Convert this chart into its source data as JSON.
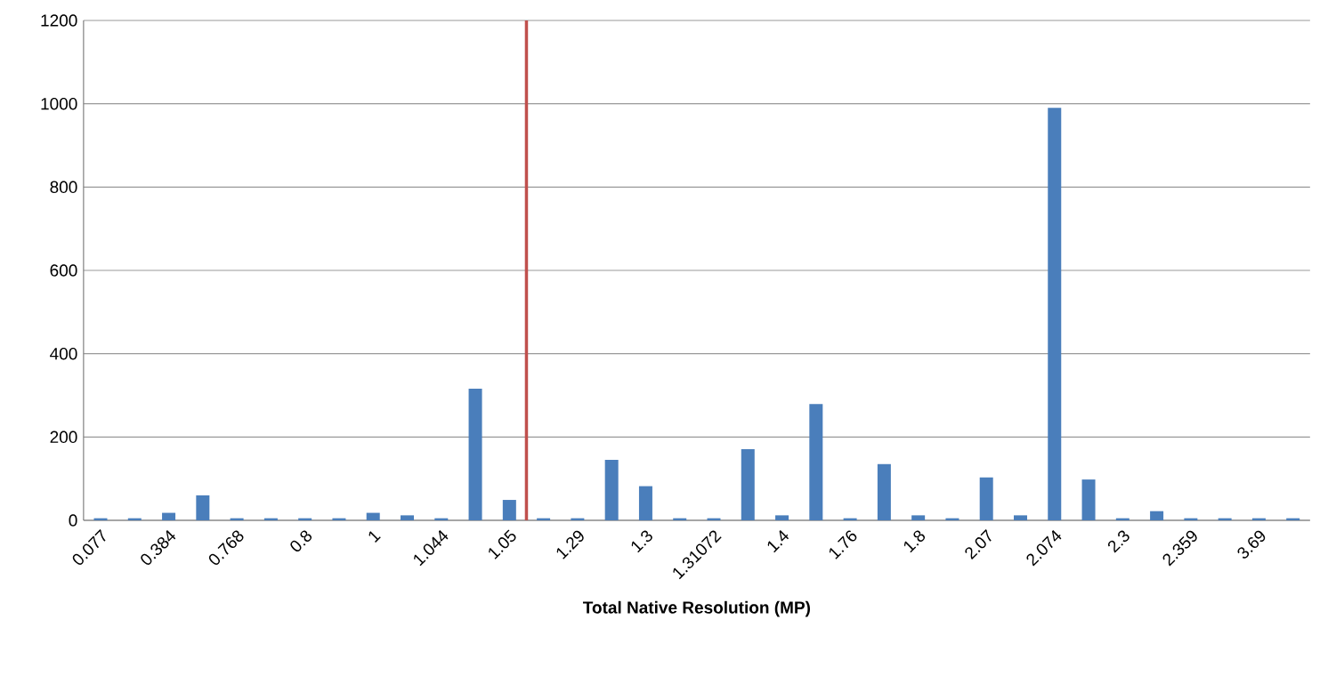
{
  "chart_data": {
    "type": "bar",
    "xlabel": "Total Native Resolution (MP)",
    "categories": [
      "0.077",
      null,
      "0.384",
      null,
      "0.768",
      null,
      "0.8",
      null,
      "1",
      null,
      "1.044",
      null,
      "1.05",
      null,
      "1.29",
      null,
      "1.3",
      null,
      "1.31072",
      null,
      "1.4",
      null,
      "1.76",
      null,
      "1.8",
      null,
      "2.07",
      null,
      "2.074",
      null,
      "2.3",
      null,
      "2.359",
      null,
      "3.69",
      null
    ],
    "values": [
      5,
      5,
      18,
      60,
      5,
      5,
      5,
      5,
      18,
      12,
      5,
      316,
      49,
      5,
      5,
      145,
      82,
      5,
      5,
      171,
      12,
      279,
      5,
      135,
      12,
      5,
      103,
      12,
      990,
      98,
      5,
      22,
      5,
      5,
      5,
      5
    ],
    "color": "#4a7ebb",
    "ylim": [
      0,
      1200
    ],
    "yticks": [
      0,
      200,
      400,
      600,
      800,
      1000,
      1200
    ],
    "grid": "y"
  }
}
